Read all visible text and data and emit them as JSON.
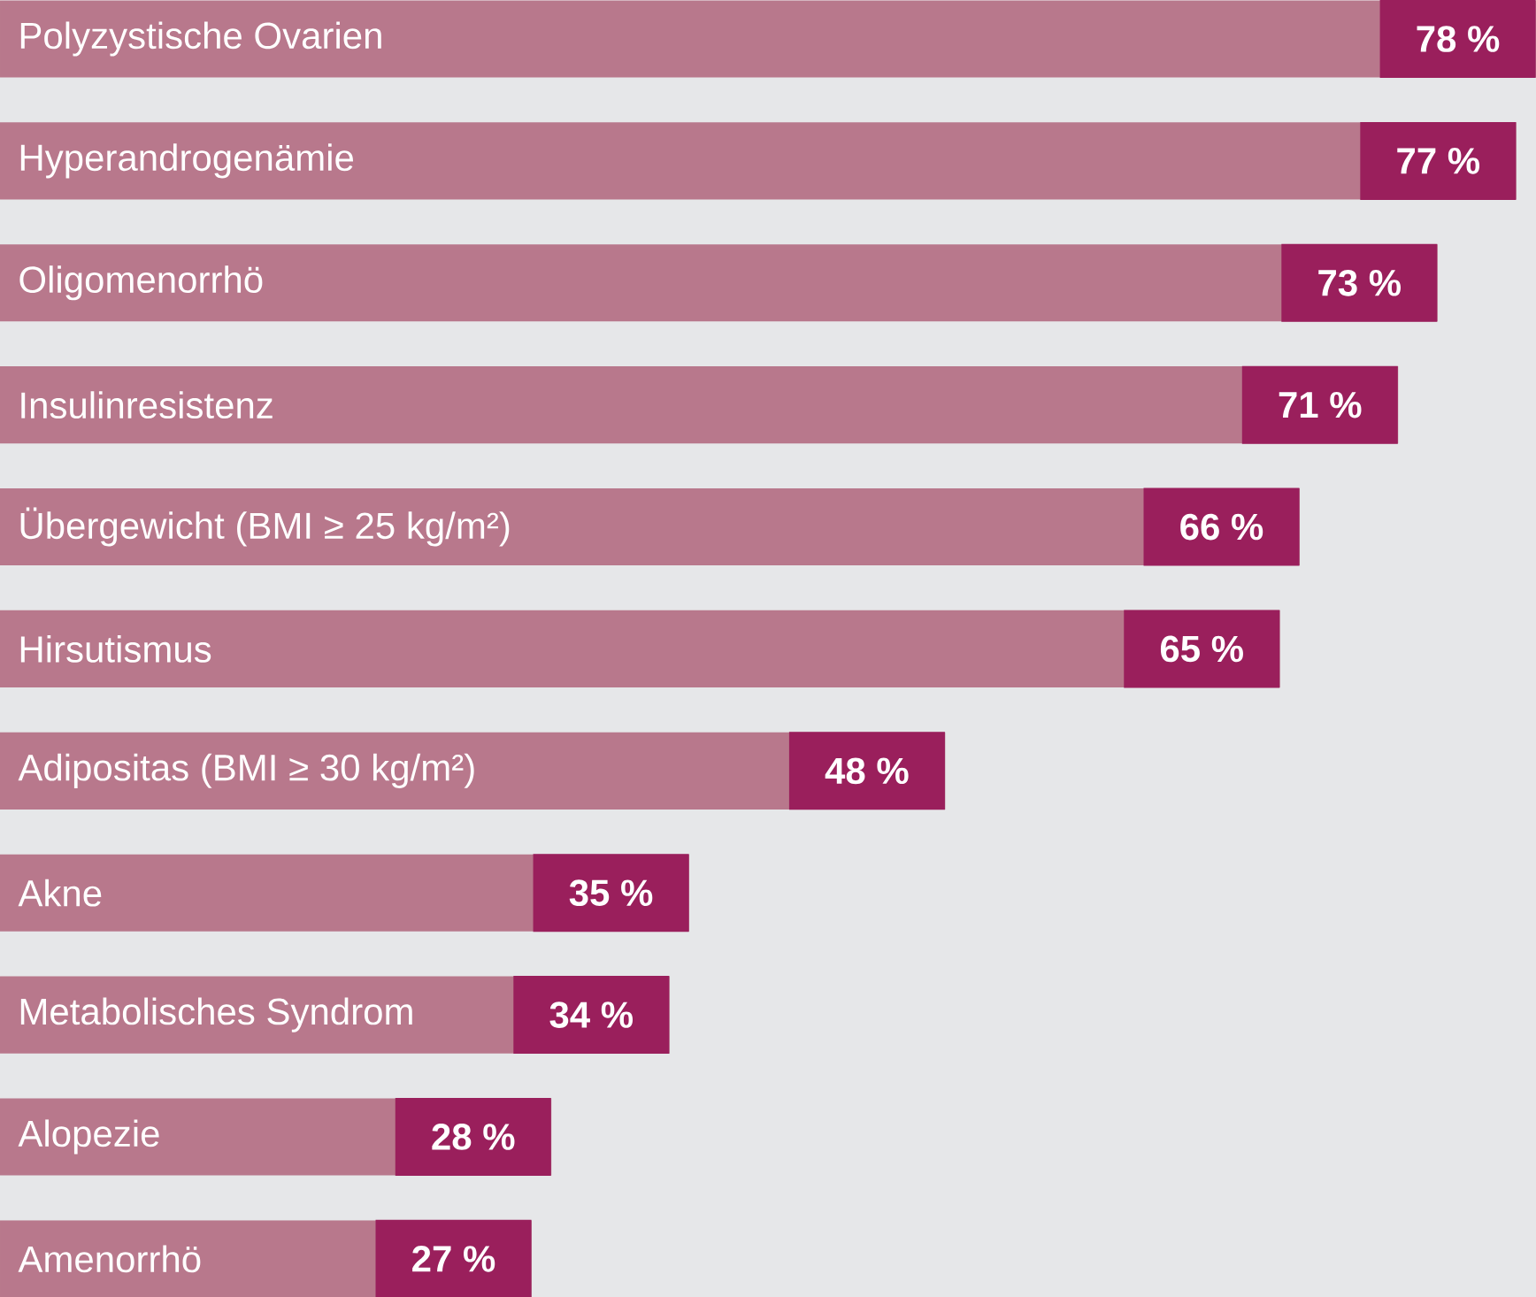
{
  "chart_data": {
    "type": "bar",
    "orientation": "horizontal",
    "categories": [
      "Polyzystische Ovarien",
      "Hyperandrogenämie",
      "Oligomenorrhö",
      "Insulinresistenz",
      "Übergewicht (BMI ≥ 25 kg/m²)",
      "Hirsutismus",
      "Adipositas (BMI ≥ 30 kg/m²)",
      "Akne",
      "Metabolisches Syndrom",
      "Alopezie",
      "Amenorrhö"
    ],
    "values": [
      78,
      77,
      73,
      71,
      66,
      65,
      48,
      35,
      34,
      28,
      27
    ],
    "value_labels": [
      "78 %",
      "77 %",
      "73 %",
      "71 %",
      "66 %",
      "65 %",
      "48 %",
      "35 %",
      "34 %",
      "28 %",
      "27 %"
    ],
    "color": "#b8788c"
  }
}
